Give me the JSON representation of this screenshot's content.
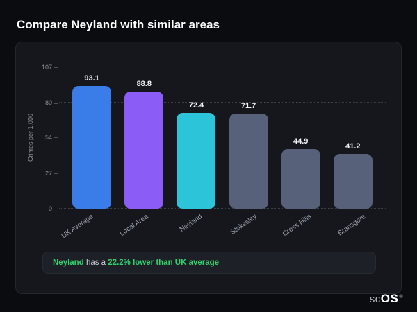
{
  "page": {
    "title": "Compare Neyland with similar areas"
  },
  "chart_data": {
    "type": "bar",
    "categories": [
      "UK Average",
      "Local Area",
      "Neyland",
      "Stokesley",
      "Cross Hills",
      "Bransgore"
    ],
    "values": [
      93.1,
      88.8,
      72.4,
      71.7,
      44.9,
      41.2
    ],
    "bar_colors": [
      "#3b7de8",
      "#8b5cf6",
      "#2bc4d8",
      "#57627a",
      "#57627a",
      "#57627a"
    ],
    "title": "",
    "xlabel": "",
    "ylabel": "Crimes per 1,000",
    "yticks": [
      0,
      27,
      54,
      80,
      107
    ],
    "ylim": [
      0,
      107
    ],
    "grid": "horizontal-dotted",
    "legend": "none"
  },
  "note": {
    "subject": "Neyland",
    "middle": " has a ",
    "highlight": "22.2% lower than UK average"
  },
  "logo": {
    "prefix": "sc",
    "suffix": "OS",
    "registered": "®"
  },
  "colors": {
    "background": "#0b0c10",
    "card": "#15171d",
    "accent_green": "#2fd36e",
    "bar_blue": "#3b7de8",
    "bar_purple": "#8b5cf6",
    "bar_cyan": "#2bc4d8",
    "bar_gray": "#57627a"
  }
}
